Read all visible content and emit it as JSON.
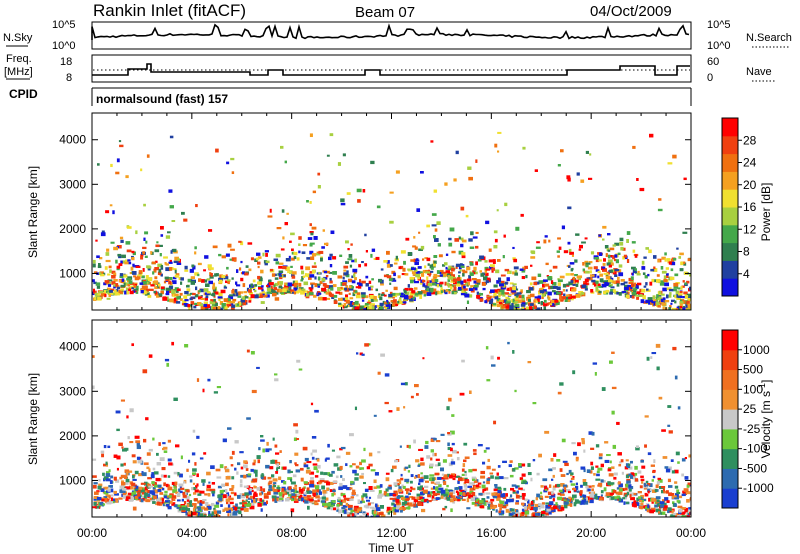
{
  "header": {
    "station": "Rankin Inlet (fitACF)",
    "beam": "Beam 07",
    "date": "04/Oct/2009"
  },
  "status_panel": {
    "nsky_label": "N.Sky",
    "nsky_top_tick": "10^5",
    "nsky_bottom_tick": "10^0",
    "nsearch_top_tick": "10^5",
    "nsearch_bottom_tick": "10^0",
    "nsearch_label": "N.Search",
    "freq_label_line1": "Freq.",
    "freq_label_line2": "[MHz]",
    "freq_top_tick": "18",
    "freq_bottom_tick": "8",
    "nave_top_tick": "60",
    "nave_bottom_tick": "0",
    "nave_label": "Nave",
    "cpid_label": "CPID",
    "cpid_value": "normalsound (fast) 157"
  },
  "chart_data": [
    {
      "type": "heatmap",
      "name": "power",
      "ylabel": "Slant Range [km]",
      "xlabel": "",
      "y_ticks": [
        "1000",
        "2000",
        "3000",
        "4000"
      ],
      "y_tick_values": [
        1000,
        2000,
        3000,
        4000
      ],
      "ylim": [
        180,
        4600
      ],
      "xlim_hours": [
        0,
        24
      ],
      "colorbar": {
        "label": "Power [dB]",
        "ticks": [
          "4",
          "8",
          "12",
          "16",
          "20",
          "24",
          "28"
        ],
        "range": [
          0,
          32
        ],
        "colors": [
          "#1010e0",
          "#2040a0",
          "#2f7f4f",
          "#44a84a",
          "#a8d040",
          "#f0e030",
          "#f5a020",
          "#f07010",
          "#f04010",
          "#ff0000"
        ]
      }
    },
    {
      "type": "heatmap",
      "name": "velocity",
      "ylabel": "Slant Range [km]",
      "xlabel": "Time UT",
      "y_ticks": [
        "1000",
        "2000",
        "3000",
        "4000"
      ],
      "y_tick_values": [
        1000,
        2000,
        3000,
        4000
      ],
      "ylim": [
        180,
        4600
      ],
      "xlim_hours": [
        0,
        24
      ],
      "x_ticks": [
        "00:00",
        "04:00",
        "08:00",
        "12:00",
        "16:00",
        "20:00",
        "00:00"
      ],
      "x_tick_hours": [
        0,
        4,
        8,
        12,
        16,
        20,
        24
      ],
      "colorbar": {
        "label": "Velocity [m s",
        "label_sup": "-1",
        "label_close": "]",
        "ticks": [
          "1000",
          "500",
          "100",
          "25",
          "-25",
          "-100",
          "-500",
          "-1000"
        ],
        "colors": [
          "#1a3fd0",
          "#2d6bb0",
          "#2f8f5f",
          "#6bc83a",
          "#c8c8c8",
          "#f09030",
          "#f07020",
          "#f04010",
          "#ff0000"
        ]
      }
    }
  ]
}
